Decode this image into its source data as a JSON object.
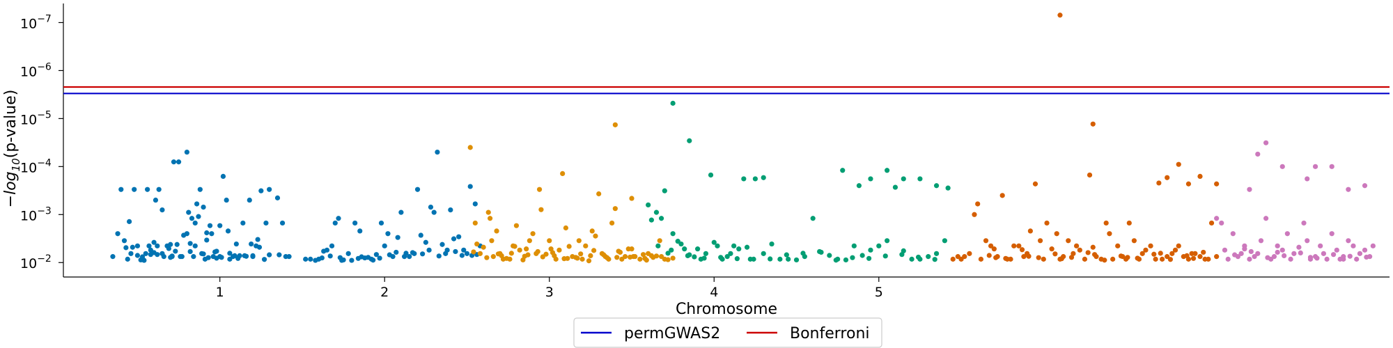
{
  "chart_data": {
    "type": "scatter",
    "title": "",
    "xlabel": "Chromosome",
    "ylabel": "−log10(p-value)",
    "ylabel_parts": {
      "prefix": "−",
      "log": "log",
      "base": "10",
      "suffix": "(p-value)"
    },
    "y_scale": "log-reversed",
    "ylim": [
      0.02,
      4e-08
    ],
    "y_ticks": [
      {
        "value": 0.01,
        "label_base": "10",
        "label_exp": "−2"
      },
      {
        "value": 0.001,
        "label_base": "10",
        "label_exp": "−3"
      },
      {
        "value": 0.0001,
        "label_base": "10",
        "label_exp": "−4"
      },
      {
        "value": 1e-05,
        "label_base": "10",
        "label_exp": "−5"
      },
      {
        "value": 1e-06,
        "label_base": "10",
        "label_exp": "−6"
      },
      {
        "value": 1e-07,
        "label_base": "10",
        "label_exp": "−7"
      }
    ],
    "x_ticks": [
      {
        "value": 1,
        "label": "1"
      },
      {
        "value": 2,
        "label": "2"
      },
      {
        "value": 3,
        "label": "3"
      },
      {
        "value": 4,
        "label": "4"
      },
      {
        "value": 5,
        "label": "5"
      }
    ],
    "xlim": [
      0.05,
      8.1
    ],
    "thresholds": [
      {
        "name": "permGWAS2",
        "value": 3e-06,
        "color": "#0000cc"
      },
      {
        "name": "Bonferroni",
        "value": 2.2e-06,
        "color": "#cc0000"
      }
    ],
    "legend": {
      "placement": "bottom-center",
      "entries": [
        "permGWAS2",
        "Bonferroni"
      ]
    },
    "grid": false,
    "series": [
      {
        "color": "#0173b2",
        "x": [
          0.35,
          0.38,
          0.4,
          0.42,
          0.44,
          0.45,
          0.46,
          0.48,
          0.5,
          0.52,
          0.54,
          0.55,
          0.56,
          0.58,
          0.6,
          0.61,
          0.62,
          0.63,
          0.65,
          0.66,
          0.68,
          0.7,
          0.71,
          0.72,
          0.74,
          0.75,
          0.76,
          0.78,
          0.8,
          0.81,
          0.82,
          0.84,
          0.85,
          0.86,
          0.87,
          0.88,
          0.9,
          0.91,
          0.92,
          0.94,
          0.95,
          0.96,
          0.97,
          0.98,
          1.0,
          1.02,
          1.04,
          1.05,
          1.06,
          1.08,
          1.1,
          1.12,
          1.14,
          1.15,
          1.18,
          1.2,
          1.22,
          1.25,
          1.28,
          1.3,
          1.35,
          1.38,
          1.4,
          1.42,
          0.57,
          0.65,
          0.73,
          0.83,
          0.92,
          0.5,
          0.62,
          0.77,
          0.89,
          1.0,
          1.16,
          1.23,
          0.47,
          0.6,
          0.7,
          0.8,
          0.9,
          1.01,
          1.11,
          1.2,
          1.3,
          0.53,
          0.69,
          0.85,
          0.93,
          1.06,
          1.19,
          1.27,
          0.43,
          0.58,
          0.71,
          0.82,
          0.98,
          1.09,
          1.24,
          1.36
        ],
        "y": [
          0.0075,
          0.0025,
          0.0003,
          0.0035,
          0.0085,
          0.0014,
          0.0065,
          0.0003,
          0.0045,
          0.0088,
          0.009,
          0.0065,
          0.0003,
          0.0055,
          0.0038,
          0.0005,
          0.0068,
          0.0003,
          0.0008,
          0.0075,
          0.0045,
          0.0042,
          0.0075,
          8e-05,
          0.0042,
          8e-05,
          0.0075,
          0.0027,
          5e-05,
          0.0009,
          0.004,
          0.0075,
          0.0015,
          0.0006,
          0.0011,
          0.0003,
          0.0007,
          0.0085,
          0.0024,
          0.0017,
          0.0025,
          0.0075,
          0.006,
          0.0058,
          0.0017,
          0.00016,
          0.0005,
          0.0022,
          0.0085,
          0.0075,
          0.0041,
          0.0072,
          0.0015,
          0.0072,
          0.0005,
          0.0075,
          0.0045,
          0.00032,
          0.0015,
          0.0003,
          0.00045,
          0.0015,
          0.0075,
          0.0075,
          0.0045,
          0.0065,
          0.0058,
          0.0012,
          0.0034,
          0.0071,
          0.0045,
          0.0075,
          0.0065,
          0.0075,
          0.0074,
          0.0033,
          0.0048,
          0.0062,
          0.0078,
          0.0025,
          0.0066,
          0.0078,
          0.0082,
          0.0072,
          0.0069,
          0.0076,
          0.0051,
          0.0045,
          0.0079,
          0.0064,
          0.0041,
          0.0086,
          0.0049,
          0.0068,
          0.0073,
          0.0059,
          0.0081,
          0.0072,
          0.0048,
          0.0069
        ],
        "x2": [
          1.52,
          1.55,
          1.58,
          1.6,
          1.62,
          1.65,
          1.68,
          1.7,
          1.72,
          1.74,
          1.78,
          1.8,
          1.82,
          1.85,
          1.88,
          1.9,
          1.92,
          1.95,
          1.98,
          2.0,
          2.02,
          2.05,
          2.08,
          2.1,
          2.12,
          2.15,
          2.18,
          2.2,
          2.22,
          2.25,
          2.28,
          2.3,
          2.32,
          2.35,
          2.38,
          2.4,
          2.42,
          2.45,
          2.48,
          2.5,
          2.52,
          2.55,
          2.58,
          1.63,
          1.75,
          1.86,
          1.97,
          2.07,
          2.17,
          2.27,
          2.37,
          2.47,
          2.56,
          1.67,
          1.84,
          2.03,
          2.23,
          2.43,
          1.73,
          1.93,
          2.13,
          2.33,
          2.53
        ],
        "y2": [
          0.0085,
          0.0085,
          0.009,
          0.0085,
          0.008,
          0.0055,
          0.0045,
          0.0015,
          0.0012,
          0.009,
          0.0065,
          0.009,
          0.0015,
          0.0022,
          0.008,
          0.0078,
          0.0085,
          0.0068,
          0.0015,
          0.0045,
          0.0025,
          0.0075,
          0.003,
          0.0009,
          0.0075,
          0.0075,
          0.0065,
          0.0003,
          0.0027,
          0.0038,
          0.0007,
          0.0009,
          5e-05,
          0.0042,
          0.0055,
          0.0008,
          0.0032,
          0.0029,
          0.0055,
          0.0065,
          0.00026,
          0.0006,
          0.0045,
          0.0058,
          0.0088,
          0.0076,
          0.0081,
          0.0061,
          0.0062,
          0.0055,
          0.0065,
          0.0071,
          0.0068,
          0.0073,
          0.0082,
          0.0069,
          0.0066,
          0.0059,
          0.0079,
          0.0089,
          0.0064,
          0.0073,
          0.0071
        ]
      },
      {
        "color": "#de8f05",
        "x": [
          2.52,
          2.54,
          2.55,
          2.56,
          2.58,
          2.6,
          2.62,
          2.64,
          2.65,
          2.66,
          2.68,
          2.7,
          2.72,
          2.74,
          2.76,
          2.78,
          2.8,
          2.82,
          2.84,
          2.86,
          2.88,
          2.9,
          2.92,
          2.94,
          2.96,
          2.98,
          3.0,
          3.02,
          3.04,
          3.06,
          3.08,
          3.1,
          3.12,
          3.14,
          3.16,
          3.18,
          3.2,
          3.22,
          3.24,
          3.26,
          3.28,
          3.3,
          3.32,
          3.34,
          3.36,
          3.38,
          3.4,
          3.42,
          3.44,
          3.46,
          3.48,
          3.5,
          3.52,
          3.55,
          3.58,
          3.6,
          3.62,
          3.65,
          3.68,
          3.7,
          3.72,
          3.75,
          2.63,
          2.71,
          2.79,
          2.87,
          2.95,
          3.03,
          3.11,
          3.19,
          3.27,
          3.35,
          3.43,
          3.51,
          3.59,
          3.67,
          2.69,
          2.85,
          3.01,
          3.17,
          3.33,
          3.49,
          3.63,
          2.77,
          2.93,
          3.09,
          3.25,
          3.41,
          3.57
        ],
        "y": [
          4e-05,
          0.006,
          0.0015,
          0.0041,
          0.0065,
          0.0048,
          0.0079,
          0.0012,
          0.0035,
          0.0075,
          0.0022,
          0.0065,
          0.0085,
          0.0082,
          0.0085,
          0.0045,
          0.0017,
          0.0055,
          0.0088,
          0.0052,
          0.0035,
          0.0025,
          0.0065,
          0.0003,
          0.0076,
          0.0067,
          0.0035,
          0.0062,
          0.0085,
          0.0055,
          0.00014,
          0.0019,
          0.0046,
          0.0075,
          0.0078,
          0.0035,
          0.0085,
          0.0045,
          0.0092,
          0.0022,
          0.0028,
          0.00037,
          0.0065,
          0.0075,
          0.0085,
          0.0015,
          0.00075,
          0.0058,
          0.0085,
          0.0075,
          0.0052,
          0.0052,
          0.0075,
          0.0085,
          0.0082,
          0.0065,
          0.0072,
          0.0073,
          0.0075,
          0.0085,
          0.0087,
          0.0081,
          0.0009,
          0.0072,
          0.0046,
          0.0069,
          0.00079,
          0.0072,
          0.0082,
          0.0066,
          0.0056,
          0.0079,
          0.0061,
          0.0075,
          0.0089,
          0.0035,
          0.0066,
          0.0074,
          0.0052,
          0.0081,
          0.0069,
          0.0077,
          0.0078,
          0.0064,
          0.0059,
          0.0083,
          0.0072,
          0.0078,
          0.0068
        ],
        "x2": [
          3.4,
          3.5
        ],
        "y2": [
          1.35e-05,
          0.00046
        ]
      },
      {
        "color": "#029e73",
        "x": [
          3.6,
          3.62,
          3.65,
          3.68,
          3.7,
          3.72,
          3.75,
          3.78,
          3.8,
          3.82,
          3.85,
          3.88,
          3.9,
          3.92,
          3.95,
          3.98,
          4.0,
          4.02,
          4.05,
          4.08,
          4.1,
          4.12,
          4.15,
          4.18,
          4.2,
          4.22,
          4.25,
          4.3,
          4.35,
          4.4,
          4.45,
          4.5,
          4.55,
          4.6,
          4.65,
          4.7,
          4.75,
          4.8,
          4.85,
          4.9,
          4.95,
          5.0,
          5.05,
          5.1,
          5.15,
          5.2,
          5.25,
          5.3,
          5.35,
          5.4,
          3.66,
          3.74,
          3.84,
          3.94,
          4.04,
          4.14,
          4.24,
          4.34,
          4.44,
          4.54,
          4.64,
          4.74,
          4.84,
          4.94,
          5.04,
          5.14,
          5.24,
          5.34
        ],
        "y": [
          0.00063,
          0.0013,
          0.0009,
          0.0012,
          0.00032,
          0.0064,
          0.0025,
          0.0036,
          0.0041,
          0.0052,
          0.0069,
          0.0076,
          0.0052,
          0.0085,
          0.0065,
          0.00015,
          0.0038,
          0.0045,
          0.0085,
          0.0075,
          0.0065,
          0.0045,
          0.0052,
          0.00018,
          0.0048,
          0.0085,
          0.00018,
          0.0065,
          0.0041,
          0.0085,
          0.0085,
          0.0088,
          0.0075,
          0.0012,
          0.0061,
          0.0071,
          0.0085,
          0.0088,
          0.0045,
          0.0071,
          0.0055,
          0.0045,
          0.0035,
          0.00027,
          0.0057,
          0.0085,
          0.0085,
          0.0075,
          0.0065,
          0.0035,
          0.0045,
          0.0055,
          0.0072,
          0.0081,
          0.0078,
          0.0083,
          0.0085,
          0.0084,
          0.0069,
          0.0064,
          0.0059,
          0.0089,
          0.0079,
          0.0082,
          0.0073,
          0.0068,
          0.0077,
          0.0086
        ],
        "x2": [
          3.75,
          3.85,
          4.3,
          4.78,
          4.88,
          4.95,
          5.05,
          5.15,
          5.25,
          5.35,
          5.42
        ],
        "y2": [
          4.8e-06,
          2.9e-05,
          0.00017,
          0.00012,
          0.00025,
          0.00018,
          0.00012,
          0.00018,
          0.00018,
          0.00025,
          0.00028
        ]
      },
      {
        "color": "#d55e00",
        "x": [
          5.45,
          5.48,
          5.5,
          5.52,
          5.55,
          5.58,
          5.6,
          5.62,
          5.65,
          5.68,
          5.7,
          5.72,
          5.75,
          5.78,
          5.8,
          5.82,
          5.85,
          5.88,
          5.9,
          5.92,
          5.95,
          5.98,
          6.0,
          6.02,
          6.05,
          6.08,
          6.1,
          6.12,
          6.15,
          6.18,
          6.2,
          6.22,
          6.25,
          6.28,
          6.3,
          6.32,
          6.35,
          6.38,
          6.4,
          6.42,
          6.45,
          6.48,
          6.5,
          6.52,
          6.55,
          6.58,
          6.6,
          6.62,
          6.65,
          6.68,
          6.7,
          6.72,
          6.75,
          6.78,
          6.8,
          6.82,
          6.85,
          6.88,
          6.9,
          6.92,
          6.95,
          6.98,
          7.0,
          7.02,
          7.05,
          5.67,
          5.77,
          5.87,
          5.97,
          6.07,
          6.17,
          6.27,
          6.37,
          6.47,
          6.57,
          6.67,
          6.77,
          6.87,
          6.97,
          5.71,
          5.91,
          6.11,
          6.31,
          6.51,
          6.71,
          6.91
        ],
        "y": [
          0.0085,
          0.0075,
          0.0085,
          0.0075,
          0.0065,
          0.001,
          0.0006,
          0.0085,
          0.0035,
          0.0045,
          0.0052,
          0.0075,
          0.0004,
          0.0085,
          0.0085,
          0.0045,
          0.0045,
          0.0075,
          0.0065,
          0.0022,
          0.00023,
          0.0035,
          0.0085,
          0.0015,
          0.0052,
          0.0025,
          0.0085,
          0.0075,
          0.0035,
          0.0065,
          0.0045,
          0.0055,
          0.0085,
          0.00015,
          0.0048,
          0.0075,
          0.0085,
          0.0015,
          0.0025,
          0.0085,
          0.0045,
          0.0075,
          0.0085,
          0.0015,
          0.0035,
          0.0085,
          0.0065,
          0.0055,
          0.0045,
          0.0085,
          0.00022,
          0.0085,
          0.0075,
          0.0065,
          0.0055,
          0.0045,
          0.0075,
          0.0085,
          0.0065,
          0.0065,
          0.0075,
          0.0085,
          0.0085,
          0.0015,
          0.0075,
          0.0071,
          0.0082,
          0.0054,
          0.0079,
          0.0066,
          0.0078,
          0.0062,
          0.0089,
          0.0073,
          0.0081,
          0.0067,
          0.0086,
          0.0072,
          0.0061,
          0.0079,
          0.0074,
          0.0083,
          0.0068,
          0.0078,
          0.0064,
          0.0082
        ],
        "x2": [
          6.1,
          6.3,
          6.82,
          6.95,
          7.05,
          6.75,
          6.88
        ],
        "y2": [
          7e-08,
          1.3e-05,
          9e-05,
          0.00016,
          0.00023,
          0.00017,
          0.00023
        ]
      },
      {
        "color": "#cc78bc",
        "x": [
          7.05,
          7.08,
          7.1,
          7.12,
          7.15,
          7.18,
          7.2,
          7.22,
          7.25,
          7.28,
          7.3,
          7.32,
          7.35,
          7.38,
          7.4,
          7.42,
          7.45,
          7.48,
          7.5,
          7.52,
          7.55,
          7.58,
          7.6,
          7.62,
          7.65,
          7.68,
          7.7,
          7.72,
          7.75,
          7.78,
          7.8,
          7.82,
          7.85,
          7.88,
          7.9,
          7.92,
          7.95,
          7.98,
          8.0,
          7.16,
          7.26,
          7.36,
          7.46,
          7.56,
          7.66,
          7.76,
          7.86,
          7.96,
          7.22,
          7.42,
          7.62,
          7.82
        ],
        "y": [
          0.0012,
          0.0015,
          0.0055,
          0.0085,
          0.0025,
          0.0075,
          0.0065,
          0.0045,
          0.0085,
          0.0075,
          0.0065,
          0.0035,
          0.0012,
          0.0085,
          0.0075,
          0.0045,
          0.0055,
          0.0025,
          0.0085,
          0.0065,
          0.0048,
          0.0015,
          0.0035,
          0.0085,
          0.0075,
          0.0045,
          0.0065,
          0.0085,
          0.0025,
          0.0055,
          0.0085,
          0.0075,
          0.0035,
          0.0045,
          0.0085,
          0.0065,
          0.0055,
          0.0075,
          0.0045,
          0.0069,
          0.0059,
          0.0079,
          0.0072,
          0.0063,
          0.0081,
          0.0068,
          0.0074,
          0.0077,
          0.0052,
          0.0061,
          0.0078,
          0.0085
        ],
        "x2": [
          7.25,
          7.35,
          7.45,
          7.65,
          7.75,
          7.85,
          7.95,
          7.6,
          7.3
        ],
        "y2": [
          0.0003,
          3.2e-05,
          0.0001,
          0.0001,
          0.0001,
          0.0003,
          0.00025,
          0.00018,
          5.5e-05
        ]
      }
    ]
  }
}
